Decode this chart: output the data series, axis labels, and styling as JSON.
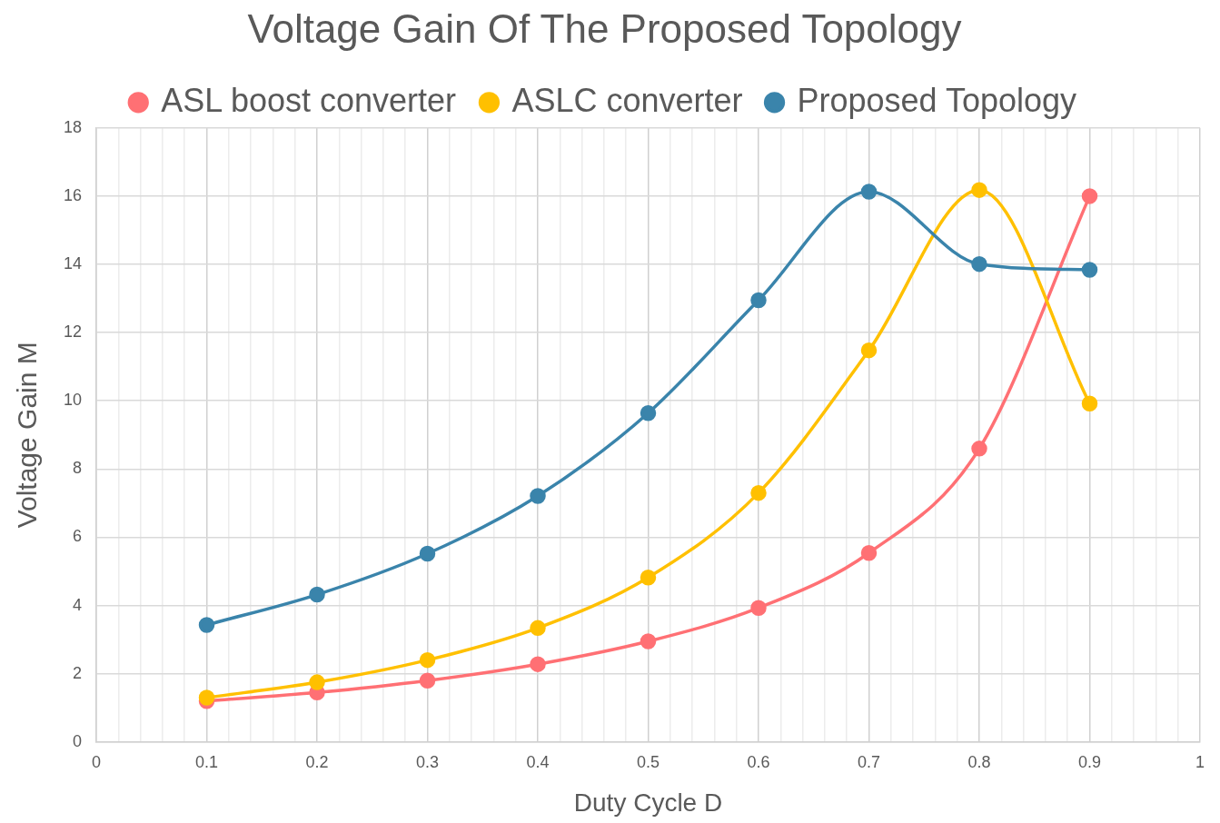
{
  "chart_data": {
    "type": "line",
    "title": "Voltage Gain Of The Proposed Topology",
    "xlabel": "Duty Cycle D",
    "ylabel": "Voltage Gain M",
    "x": [
      0.1,
      0.2,
      0.3,
      0.4,
      0.5,
      0.6,
      0.7,
      0.8,
      0.9
    ],
    "series": [
      {
        "name": "ASL boost converter",
        "color": "#ff7074",
        "values": [
          1.2,
          1.45,
          1.8,
          2.28,
          2.95,
          3.93,
          5.54,
          8.6,
          16
        ]
      },
      {
        "name": "ASLC converter",
        "color": "#ffc000",
        "values": [
          1.3,
          1.75,
          2.4,
          3.34,
          4.82,
          7.3,
          11.48,
          16.18,
          9.92
        ]
      },
      {
        "name": "Proposed Topology",
        "color": "#3a84ab",
        "values": [
          3.43,
          4.32,
          5.52,
          7.21,
          9.64,
          12.95,
          16.13,
          14.01,
          13.84
        ]
      }
    ],
    "xlim": [
      0,
      1
    ],
    "xticks": [
      0,
      {
        "value": 0.02,
        "label": null
      },
      {
        "value": 0.04,
        "label": null
      },
      {
        "value": 0.06,
        "label": null
      },
      {
        "value": 0.08,
        "label": null
      },
      0.1,
      {
        "value": 0.12,
        "label": null
      },
      {
        "value": 0.14,
        "label": null
      },
      {
        "value": 0.16,
        "label": null
      },
      {
        "value": 0.18,
        "label": null
      },
      0.2,
      {
        "value": 0.22,
        "label": null
      },
      {
        "value": 0.24,
        "label": null
      },
      {
        "value": 0.26,
        "label": null
      },
      {
        "value": 0.28,
        "label": null
      },
      0.3,
      {
        "value": 0.32,
        "label": null
      },
      {
        "value": 0.34,
        "label": null
      },
      {
        "value": 0.36,
        "label": null
      },
      {
        "value": 0.38,
        "label": null
      },
      0.4,
      {
        "value": 0.42,
        "label": null
      },
      {
        "value": 0.44,
        "label": null
      },
      {
        "value": 0.46,
        "label": null
      },
      {
        "value": 0.48,
        "label": null
      },
      0.5,
      {
        "value": 0.52,
        "label": null
      },
      {
        "value": 0.54,
        "label": null
      },
      {
        "value": 0.56,
        "label": null
      },
      {
        "value": 0.58,
        "label": null
      },
      0.6,
      {
        "value": 0.62,
        "label": null
      },
      {
        "value": 0.64,
        "label": null
      },
      {
        "value": 0.66,
        "label": null
      },
      {
        "value": 0.68,
        "label": null
      },
      0.7,
      {
        "value": 0.72,
        "label": null
      },
      {
        "value": 0.74,
        "label": null
      },
      {
        "value": 0.76,
        "label": null
      },
      {
        "value": 0.78,
        "label": null
      },
      0.8,
      {
        "value": 0.82,
        "label": null
      },
      {
        "value": 0.84,
        "label": null
      },
      {
        "value": 0.86,
        "label": null
      },
      {
        "value": 0.88,
        "label": null
      },
      0.9,
      {
        "value": 0.92,
        "label": null
      },
      {
        "value": 0.94,
        "label": null
      },
      {
        "value": 0.96,
        "label": null
      },
      {
        "value": 0.98,
        "label": null
      },
      1
    ],
    "ylim": [
      0,
      18
    ],
    "yticks": [
      0,
      2,
      4,
      6,
      8,
      10,
      12,
      14,
      16,
      18
    ],
    "grid": true,
    "legend": "top",
    "marker": "circle",
    "line_style": "solid"
  }
}
